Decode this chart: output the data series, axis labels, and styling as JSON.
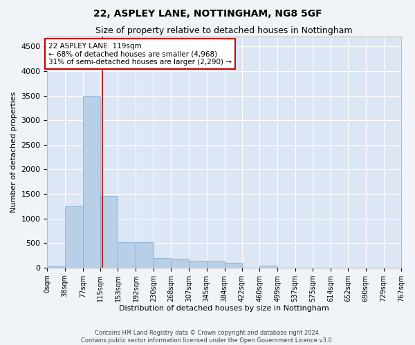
{
  "title1": "22, ASPLEY LANE, NOTTINGHAM, NG8 5GF",
  "title2": "Size of property relative to detached houses in Nottingham",
  "xlabel": "Distribution of detached houses by size in Nottingham",
  "ylabel": "Number of detached properties",
  "footer1": "Contains HM Land Registry data © Crown copyright and database right 2024.",
  "footer2": "Contains public sector information licensed under the Open Government Licence v3.0.",
  "annotation_line1": "22 ASPLEY LANE: 119sqm",
  "annotation_line2": "← 68% of detached houses are smaller (4,968)",
  "annotation_line3": "31% of semi-detached houses are larger (2,290) →",
  "bar_color": "#b8cfe8",
  "bar_edge_color": "#7aaad0",
  "bg_color": "#dce6f5",
  "grid_color": "#ffffff",
  "marker_line_color": "#cc0000",
  "annotation_box_edge": "#cc0000",
  "fig_bg_color": "#f0f4f8",
  "bins": [
    0,
    38,
    77,
    115,
    153,
    192,
    230,
    268,
    307,
    345,
    384,
    422,
    460,
    499,
    537,
    575,
    614,
    652,
    690,
    729,
    767
  ],
  "counts": [
    20,
    1250,
    3500,
    1450,
    520,
    520,
    195,
    175,
    130,
    130,
    90,
    0,
    45,
    0,
    0,
    0,
    0,
    0,
    0,
    0
  ],
  "property_size": 119,
  "ylim": [
    0,
    4700
  ],
  "yticks": [
    0,
    500,
    1000,
    1500,
    2000,
    2500,
    3000,
    3500,
    4000,
    4500
  ],
  "title1_fontsize": 10,
  "title2_fontsize": 9,
  "ylabel_fontsize": 8,
  "xlabel_fontsize": 8,
  "tick_fontsize": 7,
  "footer_fontsize": 6
}
